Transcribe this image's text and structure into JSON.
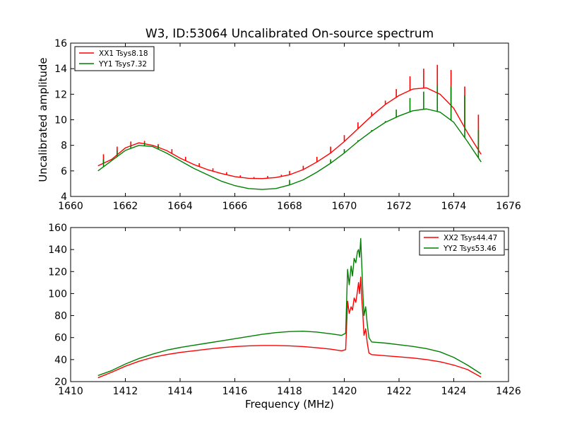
{
  "figure": {
    "title": "W3, ID:53064 Uncalibrated On-source spectrum"
  },
  "chart_data": [
    {
      "type": "line",
      "title": "W3, ID:53064 Uncalibrated On-source spectrum",
      "xlabel": "",
      "ylabel": "Uncalibrated amplitude",
      "xlim": [
        1660,
        1676
      ],
      "ylim": [
        4,
        16
      ],
      "xticks": [
        "1660",
        "1662",
        "1664",
        "1666",
        "1668",
        "1670",
        "1672",
        "1674",
        "1676"
      ],
      "yticks": [
        "4",
        "6",
        "8",
        "10",
        "12",
        "14",
        "16"
      ],
      "legend_position": "top-left",
      "series": [
        {
          "name": "XX1 Tsys8.18",
          "color": "#ff0000",
          "x": [
            1661.0,
            1661.5,
            1662.0,
            1662.5,
            1663.0,
            1663.5,
            1664.0,
            1664.5,
            1665.0,
            1665.5,
            1666.0,
            1666.5,
            1667.0,
            1667.5,
            1668.0,
            1668.5,
            1669.0,
            1669.5,
            1670.0,
            1670.5,
            1671.0,
            1671.5,
            1672.0,
            1672.5,
            1673.0,
            1673.5,
            1674.0,
            1674.5,
            1675.0
          ],
          "y": [
            6.4,
            6.9,
            7.8,
            8.2,
            8.0,
            7.6,
            7.0,
            6.5,
            6.1,
            5.8,
            5.55,
            5.42,
            5.4,
            5.48,
            5.7,
            6.1,
            6.7,
            7.4,
            8.3,
            9.3,
            10.3,
            11.2,
            11.9,
            12.4,
            12.5,
            12.0,
            10.9,
            9.0,
            7.3
          ],
          "spikes": [
            {
              "x": 1661.2,
              "top": 7.3
            },
            {
              "x": 1661.7,
              "top": 7.9
            },
            {
              "x": 1662.2,
              "top": 8.3
            },
            {
              "x": 1662.7,
              "top": 8.35
            },
            {
              "x": 1663.2,
              "top": 8.1
            },
            {
              "x": 1663.7,
              "top": 7.7
            },
            {
              "x": 1664.2,
              "top": 7.1
            },
            {
              "x": 1664.7,
              "top": 6.6
            },
            {
              "x": 1665.2,
              "top": 6.2
            },
            {
              "x": 1665.7,
              "top": 5.9
            },
            {
              "x": 1666.2,
              "top": 5.65
            },
            {
              "x": 1666.7,
              "top": 5.52
            },
            {
              "x": 1667.2,
              "top": 5.6
            },
            {
              "x": 1667.7,
              "top": 5.7
            },
            {
              "x": 1668.0,
              "top": 6.0
            },
            {
              "x": 1668.5,
              "top": 6.4
            },
            {
              "x": 1669.0,
              "top": 7.1
            },
            {
              "x": 1669.5,
              "top": 7.9
            },
            {
              "x": 1670.0,
              "top": 8.8
            },
            {
              "x": 1670.5,
              "top": 9.8
            },
            {
              "x": 1671.0,
              "top": 10.6
            },
            {
              "x": 1671.5,
              "top": 11.5
            },
            {
              "x": 1671.9,
              "top": 12.4
            },
            {
              "x": 1672.4,
              "top": 13.4
            },
            {
              "x": 1672.9,
              "top": 14.0
            },
            {
              "x": 1673.4,
              "top": 14.3
            },
            {
              "x": 1673.9,
              "top": 13.9
            },
            {
              "x": 1674.4,
              "top": 12.6
            },
            {
              "x": 1674.9,
              "top": 10.4
            }
          ]
        },
        {
          "name": "YY1 Tsys7.32",
          "color": "#008000",
          "x": [
            1661.0,
            1661.5,
            1662.0,
            1662.5,
            1663.0,
            1663.5,
            1664.0,
            1664.5,
            1665.0,
            1665.5,
            1666.0,
            1666.5,
            1667.0,
            1667.5,
            1668.0,
            1668.5,
            1669.0,
            1669.5,
            1670.0,
            1670.5,
            1671.0,
            1671.5,
            1672.0,
            1672.5,
            1673.0,
            1673.5,
            1674.0,
            1674.5,
            1675.0
          ],
          "y": [
            6.0,
            6.8,
            7.6,
            8.0,
            7.9,
            7.4,
            6.8,
            6.2,
            5.7,
            5.2,
            4.85,
            4.62,
            4.55,
            4.62,
            4.9,
            5.3,
            5.9,
            6.6,
            7.4,
            8.3,
            9.1,
            9.8,
            10.3,
            10.7,
            10.85,
            10.6,
            9.8,
            8.3,
            6.7
          ],
          "spikes": [
            {
              "x": 1661.2,
              "top": 6.9
            },
            {
              "x": 1661.7,
              "top": 7.6
            },
            {
              "x": 1662.2,
              "top": 8.0
            },
            {
              "x": 1662.7,
              "top": 8.2
            },
            {
              "x": 1663.2,
              "top": 8.0
            },
            {
              "x": 1668.0,
              "top": 5.3
            },
            {
              "x": 1669.5,
              "top": 6.9
            },
            {
              "x": 1670.0,
              "top": 7.7
            },
            {
              "x": 1670.5,
              "top": 8.4
            },
            {
              "x": 1671.0,
              "top": 9.2
            },
            {
              "x": 1671.5,
              "top": 9.9
            },
            {
              "x": 1671.9,
              "top": 10.8
            },
            {
              "x": 1672.4,
              "top": 11.7
            },
            {
              "x": 1672.9,
              "top": 12.2
            },
            {
              "x": 1673.4,
              "top": 12.7
            },
            {
              "x": 1673.9,
              "top": 12.6
            },
            {
              "x": 1674.4,
              "top": 11.9
            },
            {
              "x": 1674.9,
              "top": 9.2
            }
          ]
        }
      ]
    },
    {
      "type": "line",
      "title": "",
      "xlabel": "Frequency (MHz)",
      "ylabel": "",
      "xlim": [
        1410,
        1426
      ],
      "ylim": [
        20,
        160
      ],
      "xticks": [
        "1410",
        "1412",
        "1414",
        "1416",
        "1418",
        "1420",
        "1422",
        "1424",
        "1426"
      ],
      "yticks": [
        "20",
        "40",
        "60",
        "80",
        "100",
        "120",
        "140",
        "160"
      ],
      "legend_position": "top-right",
      "series": [
        {
          "name": "XX2 Tsys44.47",
          "color": "#ff0000",
          "x": [
            1411.0,
            1411.5,
            1412.0,
            1412.5,
            1413.0,
            1413.5,
            1414.0,
            1414.5,
            1415.0,
            1415.5,
            1416.0,
            1416.5,
            1417.0,
            1417.5,
            1418.0,
            1418.5,
            1419.0,
            1419.5,
            1419.9,
            1420.05,
            1420.12,
            1420.18,
            1420.25,
            1420.3,
            1420.36,
            1420.42,
            1420.48,
            1420.52,
            1420.56,
            1420.6,
            1420.64,
            1420.68,
            1420.72,
            1420.78,
            1420.84,
            1420.9,
            1421.0,
            1421.5,
            1422.0,
            1422.5,
            1423.0,
            1423.5,
            1424.0,
            1424.5,
            1425.0
          ],
          "y": [
            23.5,
            28.5,
            34,
            38.5,
            42,
            44.5,
            46.5,
            48,
            49.5,
            50.8,
            51.8,
            52.5,
            52.8,
            52.8,
            52.5,
            51.8,
            50.8,
            49.5,
            48,
            49,
            93,
            82,
            88,
            85,
            96,
            92,
            102,
            110,
            100,
            115,
            95,
            80,
            62,
            68,
            55,
            46,
            44.5,
            43.5,
            42.5,
            41.5,
            40,
            38,
            35,
            31,
            24
          ]
        },
        {
          "name": "YY2 Tsys53.46",
          "color": "#008000",
          "x": [
            1411.0,
            1411.5,
            1412.0,
            1412.5,
            1413.0,
            1413.5,
            1414.0,
            1414.5,
            1415.0,
            1415.5,
            1416.0,
            1416.5,
            1417.0,
            1417.5,
            1418.0,
            1418.5,
            1419.0,
            1419.5,
            1419.9,
            1420.05,
            1420.12,
            1420.18,
            1420.25,
            1420.3,
            1420.36,
            1420.42,
            1420.48,
            1420.52,
            1420.56,
            1420.6,
            1420.64,
            1420.68,
            1420.72,
            1420.78,
            1420.84,
            1420.9,
            1421.0,
            1421.5,
            1422.0,
            1422.5,
            1423.0,
            1423.5,
            1424.0,
            1424.5,
            1425.0
          ],
          "y": [
            25.5,
            30,
            36,
            41,
            45,
            48.5,
            51,
            53,
            55,
            57,
            59,
            61,
            63,
            64.5,
            65.5,
            65.8,
            65,
            63.5,
            62,
            64,
            122,
            108,
            125,
            116,
            132,
            128,
            138,
            140,
            133,
            150,
            125,
            100,
            80,
            88,
            72,
            60,
            56,
            55,
            53.5,
            52,
            50,
            47,
            42,
            35,
            27
          ]
        }
      ]
    }
  ]
}
